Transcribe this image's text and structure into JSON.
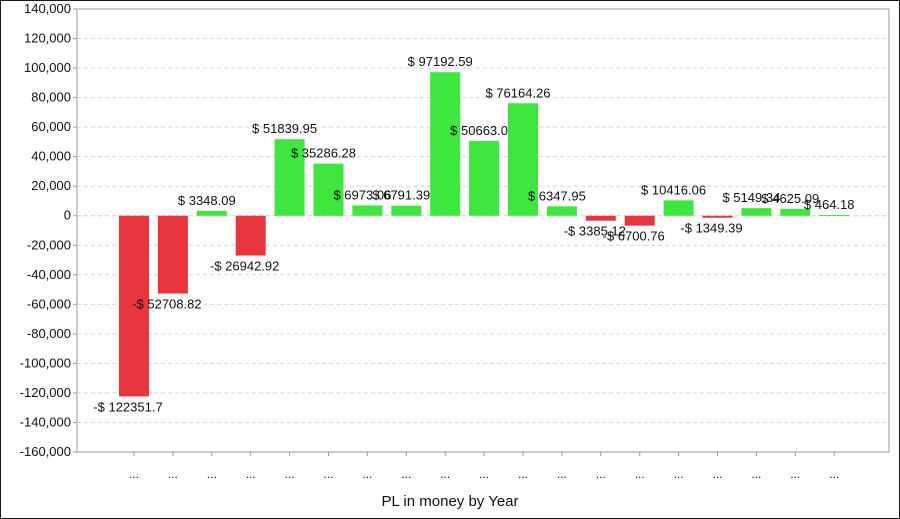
{
  "chart_data": {
    "type": "bar",
    "title": "",
    "xlabel": "PL in money by Year",
    "ylabel": "",
    "ylim": [
      -160000,
      140000
    ],
    "yticks": [
      140000,
      120000,
      100000,
      80000,
      60000,
      40000,
      20000,
      0,
      -20000,
      -40000,
      -60000,
      -80000,
      -100000,
      -120000,
      -140000,
      -160000
    ],
    "ytick_labels": [
      "140,000",
      "120,000",
      "100,000",
      "80,000",
      "60,000",
      "40,000",
      "20,000",
      "0",
      "-20,000",
      "-40,000",
      "-60,000",
      "-80,000",
      "-100,000",
      "-120,000",
      "-140,000",
      "-160,000"
    ],
    "grid": true,
    "legend": "none",
    "categories": [
      "...",
      "...",
      "...",
      "...",
      "...",
      "...",
      "...",
      "...",
      "...",
      "...",
      "...",
      "...",
      "...",
      "...",
      "...",
      "...",
      "...",
      "...",
      "..."
    ],
    "values": [
      -122351.7,
      -52708.82,
      3348.09,
      -26942.92,
      51839.95,
      35286.28,
      6973.06,
      6791.39,
      97192.59,
      50663.0,
      76164.26,
      6347.95,
      -3385.12,
      -6700.76,
      10416.06,
      -1349.39,
      5149.34,
      4625.09,
      464.18
    ],
    "data_labels": [
      "-$ 122351.7",
      "-$ 52708.82",
      "$ 3348.09",
      "-$ 26942.92",
      "$ 51839.95",
      "$ 35286.28",
      "$ 6973.06",
      "$ 6791.39",
      "$ 97192.59",
      "$ 50663.0",
      "$ 76164.26",
      "$ 6347.95",
      "-$ 3385.12",
      "-$ 6700.76",
      "$ 10416.06",
      "-$ 1349.39",
      "$ 5149.34",
      "$ 4625.09",
      "$ 464.18"
    ],
    "colors": {
      "positive": "#3fe63f",
      "negative": "#e8363e",
      "grid": "#d6d6d6",
      "axis": "#999999"
    }
  }
}
